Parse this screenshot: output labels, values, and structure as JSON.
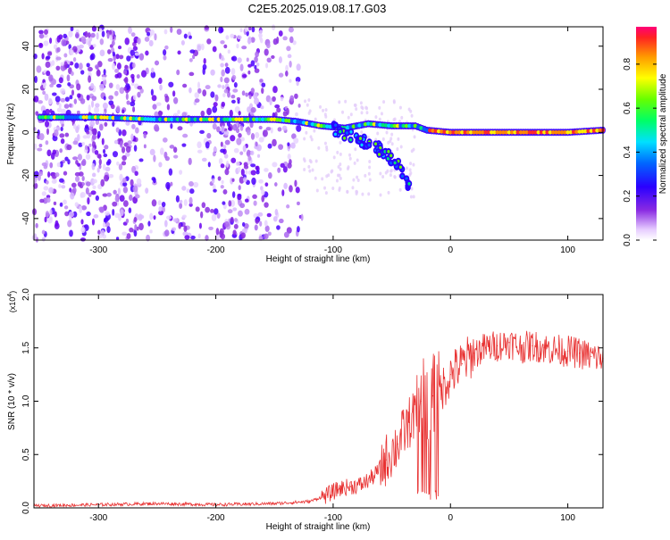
{
  "title": "C2E5.2025.019.08.17.G03",
  "chart_data": [
    {
      "type": "heatmap",
      "title": "C2E5.2025.019.08.17.G03",
      "xlabel": "Height of straight line (km)",
      "ylabel": "Frequency (Hz)",
      "xlim": [
        -355,
        130
      ],
      "ylim": [
        -50,
        49
      ],
      "xticks": [
        -300,
        -200,
        -100,
        0,
        100
      ],
      "yticks": [
        -40,
        -20,
        0,
        20,
        40
      ],
      "xtick_labels": [
        "-300",
        "-200",
        "-100",
        "0",
        "100"
      ],
      "ytick_labels": [
        "-40",
        "-20",
        "0",
        "20",
        "40"
      ],
      "colorbar": {
        "label": "Normalized spectral amplitude",
        "range": [
          0,
          0.97
        ],
        "ticks": [
          0.0,
          0.2,
          0.4,
          0.6,
          0.8
        ],
        "tick_labels": [
          "0.0",
          "0.2",
          "0.4",
          "0.6",
          "0.8"
        ]
      },
      "ridge": [
        {
          "x": -350,
          "y": 7
        },
        {
          "x": -300,
          "y": 7
        },
        {
          "x": -250,
          "y": 6
        },
        {
          "x": -200,
          "y": 6
        },
        {
          "x": -150,
          "y": 6
        },
        {
          "x": -130,
          "y": 5
        },
        {
          "x": -110,
          "y": 3
        },
        {
          "x": -90,
          "y": 2
        },
        {
          "x": -70,
          "y": 4
        },
        {
          "x": -50,
          "y": 3
        },
        {
          "x": -30,
          "y": 3
        },
        {
          "x": -20,
          "y": 1
        },
        {
          "x": 0,
          "y": 0
        },
        {
          "x": 50,
          "y": 0
        },
        {
          "x": 100,
          "y": 0
        },
        {
          "x": 130,
          "y": 1
        }
      ],
      "branch": [
        {
          "x": -100,
          "y": 2
        },
        {
          "x": -80,
          "y": -3
        },
        {
          "x": -60,
          "y": -8
        },
        {
          "x": -45,
          "y": -15
        },
        {
          "x": -35,
          "y": -25
        }
      ]
    },
    {
      "type": "line",
      "xlabel": "Height of straight line (km)",
      "ylabel": "SNR (10 * v/v)",
      "yscale_label": "(x10",
      "yscale_exp": "4",
      "yscale_suffix": ")",
      "xlim": [
        -355,
        130
      ],
      "ylim": [
        0,
        2.0
      ],
      "xticks": [
        -300,
        -200,
        -100,
        0,
        100
      ],
      "yticks": [
        0.0,
        0.5,
        1.0,
        1.5,
        2.0
      ],
      "xtick_labels": [
        "-300",
        "-200",
        "-100",
        "0",
        "100"
      ],
      "ytick_labels": [
        "0.0",
        "0.5",
        "1.0",
        "1.5",
        "2.0"
      ],
      "color": "#e83232",
      "series": [
        {
          "x": [
            -355,
            -300,
            -250,
            -200,
            -150,
            -120,
            -105,
            -95,
            -85,
            -75,
            -65,
            -55,
            -45,
            -35,
            -25,
            -15,
            -8,
            0,
            10,
            20,
            30,
            40,
            50,
            60,
            70,
            80,
            90,
            100,
            110,
            120,
            130
          ],
          "values": [
            0.02,
            0.03,
            0.04,
            0.03,
            0.04,
            0.06,
            0.12,
            0.18,
            0.2,
            0.22,
            0.3,
            0.45,
            0.6,
            0.8,
            1.0,
            1.05,
            1.1,
            1.25,
            1.35,
            1.45,
            1.5,
            1.52,
            1.55,
            1.5,
            1.52,
            1.5,
            1.48,
            1.47,
            1.45,
            1.42,
            1.4
          ]
        }
      ]
    }
  ]
}
